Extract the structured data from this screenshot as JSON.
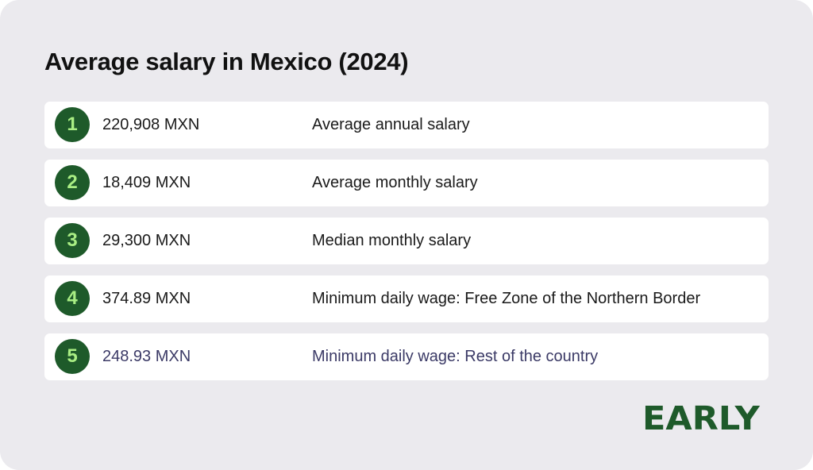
{
  "title": "Average salary in Mexico (2024)",
  "accent_color": "#1e5a2a",
  "badge_text_color": "#a9ee84",
  "rows": [
    {
      "number": "1",
      "value": "220,908 MXN",
      "label": "Average annual salary"
    },
    {
      "number": "2",
      "value": "18,409 MXN",
      "label": "Average monthly salary"
    },
    {
      "number": "3",
      "value": "29,300 MXN",
      "label": "Median monthly salary"
    },
    {
      "number": "4",
      "value": "374.89 MXN",
      "label": "Minimum daily wage: Free Zone of the Northern Border"
    },
    {
      "number": "5",
      "value": "248.93 MXN",
      "label": "Minimum daily wage: Rest of the country"
    }
  ],
  "logo": "EARLY"
}
